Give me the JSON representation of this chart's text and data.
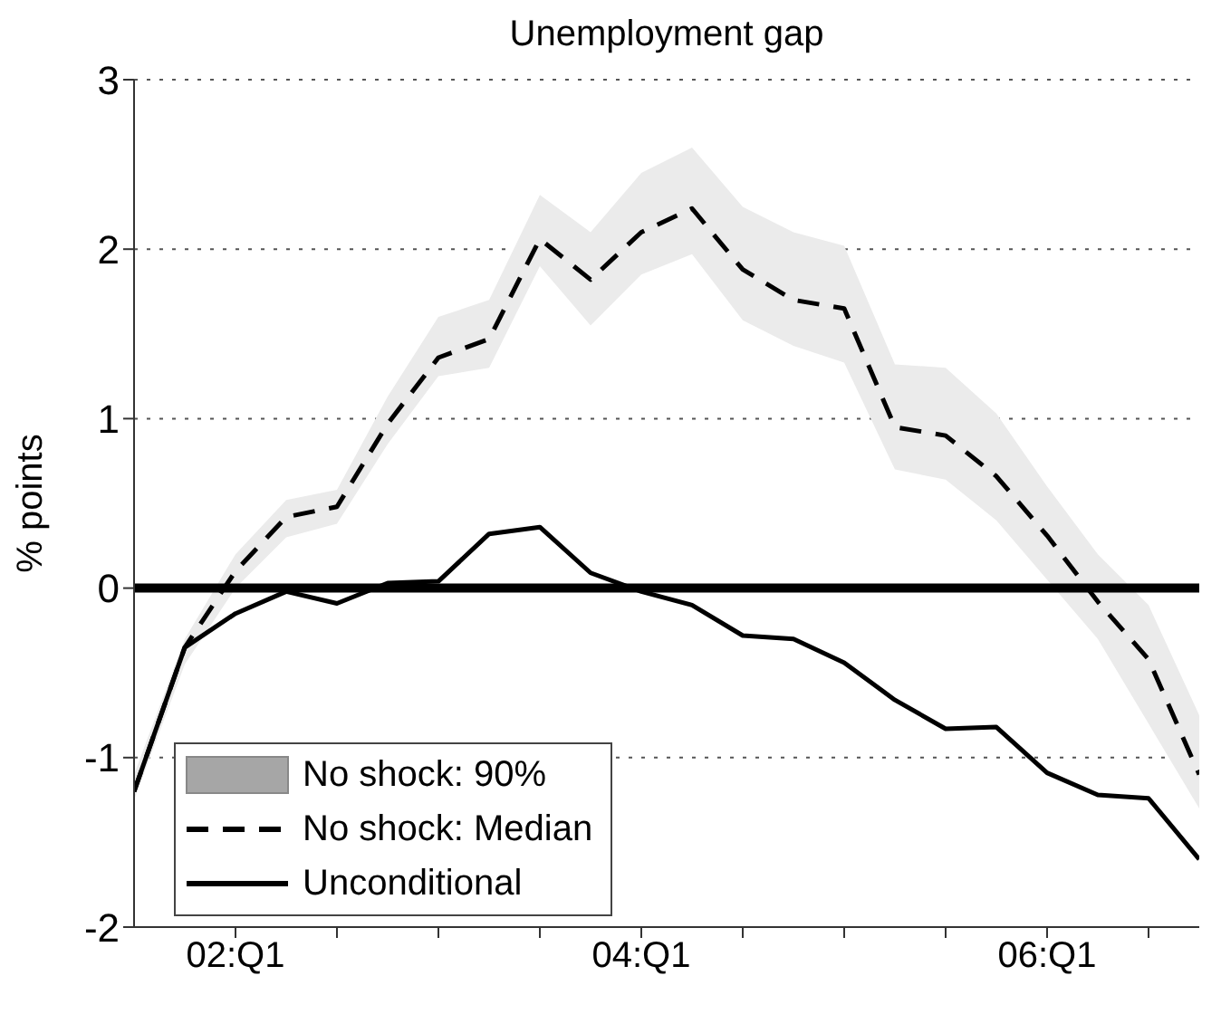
{
  "chart_data": {
    "type": "line",
    "title": "Unemployment gap",
    "ylabel": "% points",
    "categories": [
      null,
      null,
      "02:Q1",
      null,
      null,
      null,
      null,
      null,
      null,
      null,
      "04:Q1",
      null,
      null,
      null,
      null,
      null,
      null,
      null,
      "06:Q1",
      null,
      null,
      null
    ],
    "series": [
      {
        "name": "No shock: Median",
        "color": "#000000",
        "line_style": "dashed",
        "values": [
          -1.2,
          -0.35,
          0.1,
          0.42,
          0.48,
          0.97,
          1.36,
          1.47,
          2.06,
          1.82,
          2.1,
          2.24,
          1.88,
          1.7,
          1.65,
          0.95,
          0.9,
          0.66,
          0.31,
          -0.08,
          -0.42,
          -1.1
        ],
        "lower": [
          -1.25,
          -0.45,
          0.0,
          0.3,
          0.38,
          0.85,
          1.25,
          1.3,
          1.9,
          1.55,
          1.85,
          1.97,
          1.58,
          1.43,
          1.33,
          0.7,
          0.64,
          0.4,
          0.05,
          -0.3,
          -0.8,
          -1.3
        ],
        "upper": [
          -1.1,
          -0.3,
          0.2,
          0.52,
          0.58,
          1.13,
          1.6,
          1.7,
          2.32,
          2.1,
          2.45,
          2.6,
          2.25,
          2.1,
          2.02,
          1.32,
          1.3,
          1.03,
          0.6,
          0.2,
          -0.1,
          -0.75
        ]
      },
      {
        "name": "Unconditional",
        "color": "#000000",
        "line_style": "solid",
        "values": [
          -1.2,
          -0.35,
          -0.15,
          -0.02,
          -0.09,
          0.03,
          0.04,
          0.32,
          0.36,
          0.09,
          -0.02,
          -0.1,
          -0.28,
          -0.3,
          -0.44,
          -0.66,
          -0.83,
          -0.82,
          -1.09,
          -1.22,
          -1.24,
          -1.6
        ]
      }
    ],
    "annotations": [
      "No shock: 90%"
    ],
    "ylim": [
      -2,
      3
    ],
    "yticks": [
      -2,
      -1,
      0,
      1,
      2,
      3
    ],
    "grid": "y",
    "legend": "bottom left",
    "marker": "none",
    "ref_lines": [
      {
        "axis": "y",
        "value": 0,
        "color": "#000000"
      }
    ]
  }
}
